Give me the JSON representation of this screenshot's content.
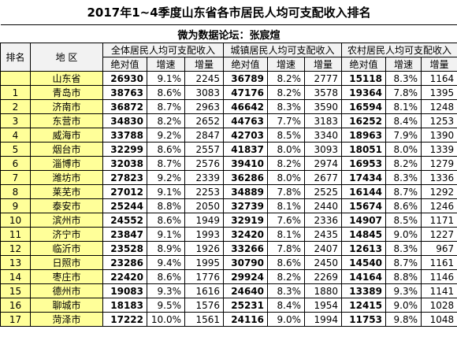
{
  "title": "2017年1~4季度山东省各市居民人均可支配收入排名",
  "subtitle": "微为数据论坛：张宸煊",
  "header": {
    "rank": "排名",
    "region": "地 区",
    "groups": [
      "全体居民人均可支配收入",
      "城镇居民人均可支配收入",
      "农村居民人均可支配收入"
    ],
    "sub": [
      "绝对值",
      "增速",
      "增量"
    ]
  },
  "rows": [
    {
      "region": "山东省",
      "values": [
        26930,
        "9.1%",
        2245,
        36789,
        "8.2%",
        2777,
        15118,
        "8.3%",
        1164
      ]
    },
    {
      "rank": 1,
      "region": "青岛市",
      "values": [
        38763,
        "8.6%",
        3083,
        47176,
        "8.2%",
        3578,
        19364,
        "7.8%",
        1395
      ]
    },
    {
      "rank": 2,
      "region": "济南市",
      "values": [
        36872,
        "8.7%",
        2963,
        46642,
        "8.3%",
        3590,
        16594,
        "8.1%",
        1248
      ]
    },
    {
      "rank": 3,
      "region": "东营市",
      "values": [
        34830,
        "8.2%",
        2652,
        44763,
        "7.7%",
        3183,
        16252,
        "8.4%",
        1253
      ]
    },
    {
      "rank": 4,
      "region": "威海市",
      "values": [
        33788,
        "9.2%",
        2847,
        42703,
        "8.5%",
        3340,
        18963,
        "7.9%",
        1390
      ]
    },
    {
      "rank": 5,
      "region": "烟台市",
      "values": [
        32299,
        "8.6%",
        2557,
        41837,
        "8.0%",
        3093,
        18051,
        "8.0%",
        1339
      ]
    },
    {
      "rank": 6,
      "region": "淄博市",
      "values": [
        32038,
        "8.7%",
        2576,
        39410,
        "8.2%",
        2974,
        16953,
        "8.2%",
        1279
      ]
    },
    {
      "rank": 7,
      "region": "潍坊市",
      "values": [
        27823,
        "9.2%",
        2339,
        36286,
        "8.0%",
        2677,
        17434,
        "8.3%",
        1336
      ]
    },
    {
      "rank": 8,
      "region": "莱芜市",
      "values": [
        27012,
        "9.1%",
        2253,
        34889,
        "7.8%",
        2525,
        16144,
        "8.7%",
        1292
      ]
    },
    {
      "rank": 9,
      "region": "泰安市",
      "values": [
        25244,
        "8.8%",
        2050,
        32739,
        "8.1%",
        2440,
        15674,
        "8.6%",
        1246
      ]
    },
    {
      "rank": 10,
      "region": "滨州市",
      "values": [
        24552,
        "8.6%",
        1949,
        32919,
        "7.6%",
        2336,
        14907,
        "8.5%",
        1171
      ]
    },
    {
      "rank": 11,
      "region": "济宁市",
      "values": [
        23847,
        "9.1%",
        1993,
        32420,
        "8.1%",
        2435,
        14845,
        "9.0%",
        1227
      ]
    },
    {
      "rank": 12,
      "region": "临沂市",
      "values": [
        23528,
        "8.9%",
        1926,
        33266,
        "7.8%",
        2407,
        12613,
        "8.3%",
        967
      ]
    },
    {
      "rank": 13,
      "region": "日照市",
      "values": [
        23286,
        "9.4%",
        1995,
        30790,
        "8.6%",
        2450,
        14540,
        "8.7%",
        1161
      ]
    },
    {
      "rank": 14,
      "region": "枣庄市",
      "values": [
        22420,
        "8.6%",
        1776,
        29924,
        "8.2%",
        2269,
        14164,
        "8.8%",
        1146
      ]
    },
    {
      "rank": 15,
      "region": "德州市",
      "values": [
        19083,
        "9.3%",
        1616,
        24640,
        "8.3%",
        1880,
        13389,
        "9.3%",
        1141
      ]
    },
    {
      "rank": 16,
      "region": "聊城市",
      "values": [
        18183,
        "9.5%",
        1576,
        25231,
        "8.4%",
        1954,
        12415,
        "9.0%",
        1028
      ]
    },
    {
      "rank": 17,
      "region": "菏泽市",
      "values": [
        17222,
        "10.0%",
        1561,
        24116,
        "9.0%",
        1994,
        11753,
        "9.8%",
        1048
      ]
    }
  ]
}
